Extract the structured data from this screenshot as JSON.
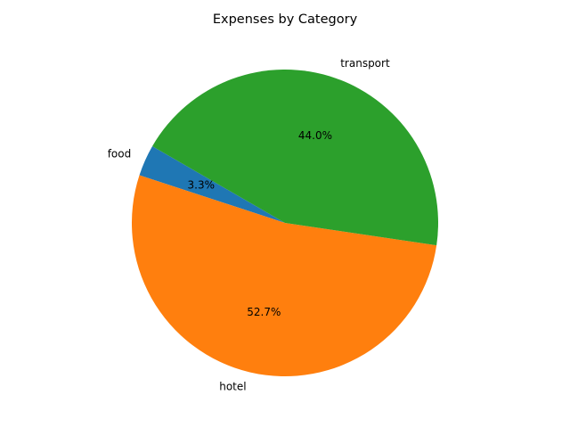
{
  "chart_data": {
    "type": "pie",
    "title": "Expenses by Category",
    "start_angle_deg": 150,
    "direction": "counterclockwise",
    "slices": [
      {
        "label": "food",
        "value": 3.3,
        "percent_label": "3.3%",
        "color": "#1f77b4"
      },
      {
        "label": "hotel",
        "value": 52.7,
        "percent_label": "52.7%",
        "color": "#ff7f0e"
      },
      {
        "label": "transport",
        "value": 44.0,
        "percent_label": "44.0%",
        "color": "#2ca02c"
      }
    ]
  }
}
